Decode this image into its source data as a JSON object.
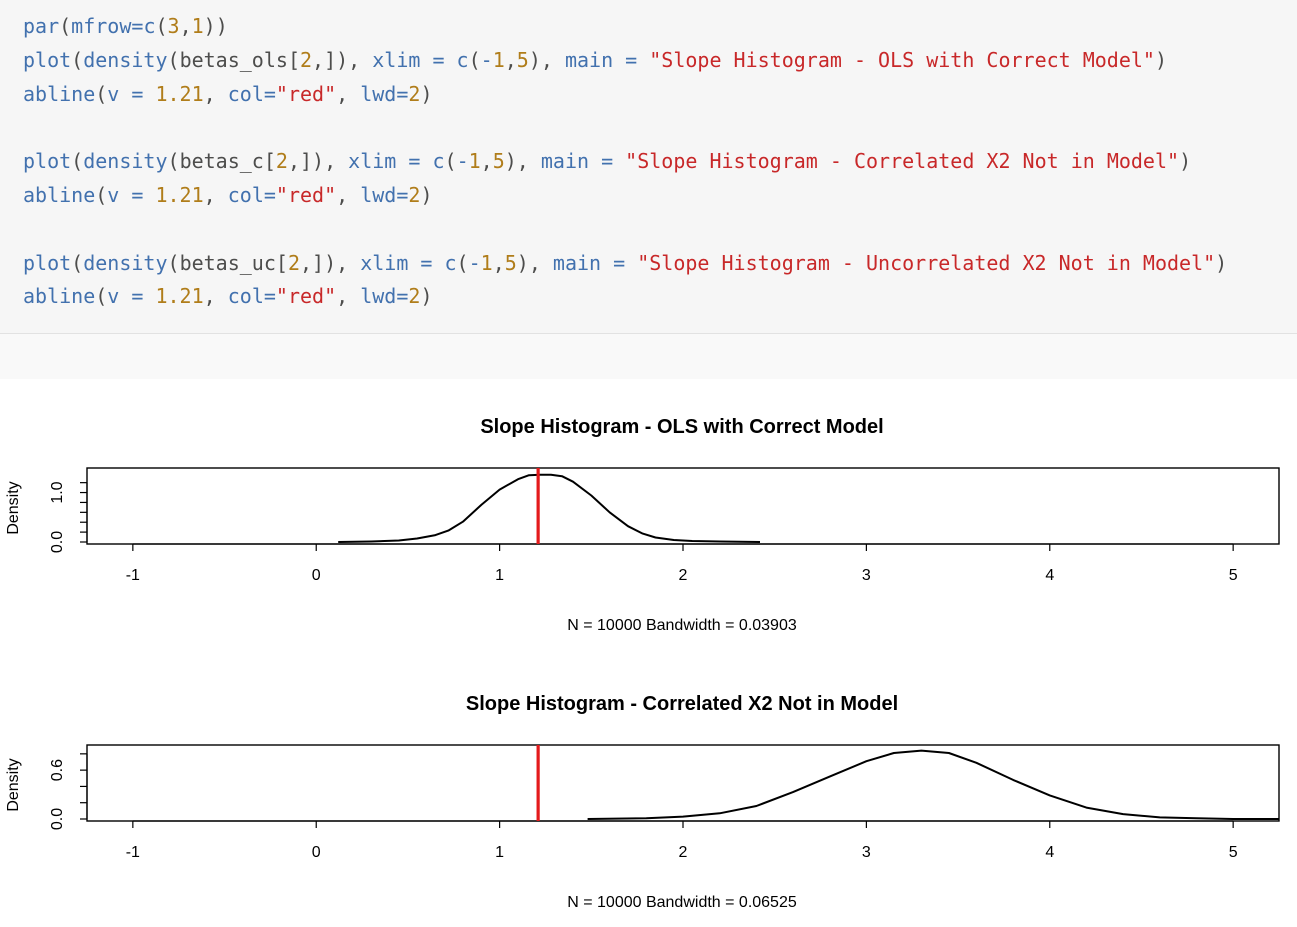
{
  "code": {
    "lines": [
      [
        {
          "t": "par",
          "c": "fn"
        },
        {
          "t": "(",
          "c": "pn"
        },
        {
          "t": "mfrow",
          "c": "kw"
        },
        {
          "t": "=",
          "c": "kw"
        },
        {
          "t": "c",
          "c": "fn"
        },
        {
          "t": "(",
          "c": "pn"
        },
        {
          "t": "3",
          "c": "num"
        },
        {
          "t": ",",
          "c": "pn"
        },
        {
          "t": "1",
          "c": "num"
        },
        {
          "t": "))",
          "c": "pn"
        }
      ],
      [
        {
          "t": "plot",
          "c": "fn"
        },
        {
          "t": "(",
          "c": "pn"
        },
        {
          "t": "density",
          "c": "fn"
        },
        {
          "t": "(",
          "c": "pn"
        },
        {
          "t": "betas_ols",
          "c": "id"
        },
        {
          "t": "[",
          "c": "pn"
        },
        {
          "t": "2",
          "c": "num"
        },
        {
          "t": ",]), ",
          "c": "pn"
        },
        {
          "t": "xlim",
          "c": "kw"
        },
        {
          "t": " = ",
          "c": "kw"
        },
        {
          "t": "c",
          "c": "fn"
        },
        {
          "t": "(",
          "c": "pn"
        },
        {
          "t": "-",
          "c": "kw"
        },
        {
          "t": "1",
          "c": "num"
        },
        {
          "t": ",",
          "c": "pn"
        },
        {
          "t": "5",
          "c": "num"
        },
        {
          "t": "), ",
          "c": "pn"
        },
        {
          "t": "main",
          "c": "kw"
        },
        {
          "t": " = ",
          "c": "kw"
        },
        {
          "t": "\"Slope Histogram - OLS with Correct Model\"",
          "c": "str"
        },
        {
          "t": ")",
          "c": "pn"
        }
      ],
      [
        {
          "t": "abline",
          "c": "fn"
        },
        {
          "t": "(",
          "c": "pn"
        },
        {
          "t": "v",
          "c": "kw"
        },
        {
          "t": " = ",
          "c": "kw"
        },
        {
          "t": "1.21",
          "c": "num"
        },
        {
          "t": ", ",
          "c": "pn"
        },
        {
          "t": "col",
          "c": "kw"
        },
        {
          "t": "=",
          "c": "kw"
        },
        {
          "t": "\"red\"",
          "c": "str"
        },
        {
          "t": ", ",
          "c": "pn"
        },
        {
          "t": "lwd",
          "c": "kw"
        },
        {
          "t": "=",
          "c": "kw"
        },
        {
          "t": "2",
          "c": "num"
        },
        {
          "t": ")",
          "c": "pn"
        }
      ],
      [],
      [
        {
          "t": "plot",
          "c": "fn"
        },
        {
          "t": "(",
          "c": "pn"
        },
        {
          "t": "density",
          "c": "fn"
        },
        {
          "t": "(",
          "c": "pn"
        },
        {
          "t": "betas_c",
          "c": "id"
        },
        {
          "t": "[",
          "c": "pn"
        },
        {
          "t": "2",
          "c": "num"
        },
        {
          "t": ",]), ",
          "c": "pn"
        },
        {
          "t": "xlim",
          "c": "kw"
        },
        {
          "t": " = ",
          "c": "kw"
        },
        {
          "t": "c",
          "c": "fn"
        },
        {
          "t": "(",
          "c": "pn"
        },
        {
          "t": "-",
          "c": "kw"
        },
        {
          "t": "1",
          "c": "num"
        },
        {
          "t": ",",
          "c": "pn"
        },
        {
          "t": "5",
          "c": "num"
        },
        {
          "t": "), ",
          "c": "pn"
        },
        {
          "t": "main",
          "c": "kw"
        },
        {
          "t": " = ",
          "c": "kw"
        },
        {
          "t": "\"Slope Histogram - Correlated X2 Not in Model\"",
          "c": "str"
        },
        {
          "t": ")",
          "c": "pn"
        }
      ],
      [
        {
          "t": "abline",
          "c": "fn"
        },
        {
          "t": "(",
          "c": "pn"
        },
        {
          "t": "v",
          "c": "kw"
        },
        {
          "t": " = ",
          "c": "kw"
        },
        {
          "t": "1.21",
          "c": "num"
        },
        {
          "t": ", ",
          "c": "pn"
        },
        {
          "t": "col",
          "c": "kw"
        },
        {
          "t": "=",
          "c": "kw"
        },
        {
          "t": "\"red\"",
          "c": "str"
        },
        {
          "t": ", ",
          "c": "pn"
        },
        {
          "t": "lwd",
          "c": "kw"
        },
        {
          "t": "=",
          "c": "kw"
        },
        {
          "t": "2",
          "c": "num"
        },
        {
          "t": ")",
          "c": "pn"
        }
      ],
      [],
      [
        {
          "t": "plot",
          "c": "fn"
        },
        {
          "t": "(",
          "c": "pn"
        },
        {
          "t": "density",
          "c": "fn"
        },
        {
          "t": "(",
          "c": "pn"
        },
        {
          "t": "betas_uc",
          "c": "id"
        },
        {
          "t": "[",
          "c": "pn"
        },
        {
          "t": "2",
          "c": "num"
        },
        {
          "t": ",]), ",
          "c": "pn"
        },
        {
          "t": "xlim",
          "c": "kw"
        },
        {
          "t": " = ",
          "c": "kw"
        },
        {
          "t": "c",
          "c": "fn"
        },
        {
          "t": "(",
          "c": "pn"
        },
        {
          "t": "-",
          "c": "kw"
        },
        {
          "t": "1",
          "c": "num"
        },
        {
          "t": ",",
          "c": "pn"
        },
        {
          "t": "5",
          "c": "num"
        },
        {
          "t": "), ",
          "c": "pn"
        },
        {
          "t": "main",
          "c": "kw"
        },
        {
          "t": " = ",
          "c": "kw"
        },
        {
          "t": "\"Slope Histogram - Uncorrelated X2 Not in Model\"",
          "c": "str"
        },
        {
          "t": ")",
          "c": "pn"
        }
      ],
      [
        {
          "t": "abline",
          "c": "fn"
        },
        {
          "t": "(",
          "c": "pn"
        },
        {
          "t": "v",
          "c": "kw"
        },
        {
          "t": " = ",
          "c": "kw"
        },
        {
          "t": "1.21",
          "c": "num"
        },
        {
          "t": ", ",
          "c": "pn"
        },
        {
          "t": "col",
          "c": "kw"
        },
        {
          "t": "=",
          "c": "kw"
        },
        {
          "t": "\"red\"",
          "c": "str"
        },
        {
          "t": ", ",
          "c": "pn"
        },
        {
          "t": "lwd",
          "c": "kw"
        },
        {
          "t": "=",
          "c": "kw"
        },
        {
          "t": "2",
          "c": "num"
        },
        {
          "t": ")",
          "c": "pn"
        }
      ]
    ]
  },
  "colors": {
    "code_background": "#f6f6f6",
    "density_line": "#000000",
    "reference_line": "#e41a1c"
  },
  "chart_data": [
    {
      "type": "line",
      "title": "Slope Histogram - OLS with Correct Model",
      "xlabel": "N = 10000   Bandwidth = 0.03903",
      "ylabel": "Density",
      "xlim": [
        -1,
        5
      ],
      "ylim": [
        0,
        1.4
      ],
      "x_ticks": [
        -1,
        0,
        1,
        2,
        3,
        4,
        5
      ],
      "y_ticks": [
        0.0,
        0.2,
        0.4,
        0.6,
        0.8,
        1.0,
        1.2
      ],
      "y_tick_labels": [
        "0.0",
        "",
        "",
        "",
        "",
        "1.0",
        ""
      ],
      "vline": 1.21,
      "vline_color": "red",
      "grid": false,
      "series": [
        {
          "x": [
            0.12,
            0.3,
            0.45,
            0.55,
            0.65,
            0.72,
            0.8,
            0.9,
            1.0,
            1.1,
            1.16,
            1.22,
            1.28,
            1.34,
            1.4,
            1.5,
            1.6,
            1.7,
            1.78,
            1.85,
            1.95,
            2.05,
            2.2,
            2.42
          ],
          "y": [
            0.0,
            0.01,
            0.03,
            0.07,
            0.14,
            0.23,
            0.41,
            0.75,
            1.06,
            1.27,
            1.35,
            1.36,
            1.36,
            1.33,
            1.22,
            0.94,
            0.6,
            0.32,
            0.17,
            0.09,
            0.04,
            0.02,
            0.01,
            0.0
          ]
        }
      ]
    },
    {
      "type": "line",
      "title": "Slope Histogram - Correlated X2 Not in Model",
      "xlabel": "N = 10000   Bandwidth = 0.06525",
      "ylabel": "Density",
      "xlim": [
        -1,
        5
      ],
      "ylim": [
        0,
        0.85
      ],
      "x_ticks": [
        -1,
        0,
        1,
        2,
        3,
        4,
        5
      ],
      "y_ticks": [
        0.0,
        0.2,
        0.4,
        0.6,
        0.8
      ],
      "y_tick_labels": [
        "0.0",
        "",
        "",
        "0.6",
        ""
      ],
      "vline": 1.21,
      "vline_color": "red",
      "grid": false,
      "series": [
        {
          "x": [
            1.48,
            1.8,
            2.0,
            2.2,
            2.4,
            2.6,
            2.8,
            3.0,
            3.15,
            3.3,
            3.45,
            3.6,
            3.8,
            4.0,
            4.2,
            4.4,
            4.6,
            4.8,
            5.0,
            5.25
          ],
          "y": [
            0.0,
            0.01,
            0.03,
            0.07,
            0.16,
            0.33,
            0.52,
            0.71,
            0.81,
            0.84,
            0.81,
            0.69,
            0.48,
            0.29,
            0.14,
            0.06,
            0.02,
            0.01,
            0.0,
            0.0
          ]
        }
      ]
    }
  ]
}
